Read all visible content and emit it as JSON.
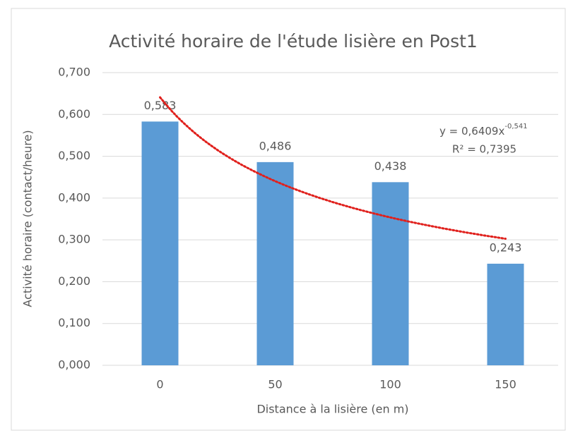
{
  "chart_data": {
    "type": "bar",
    "title": "Activité horaire de l'étude lisière en Post1",
    "x_label": "Distance à la lisière (en m)",
    "y_label": "Activité horaire (contact/heure)",
    "categories": [
      "0",
      "50",
      "100",
      "150"
    ],
    "values": [
      0.583,
      0.486,
      0.438,
      0.243
    ],
    "value_labels": [
      "0,583",
      "0,486",
      "0,438",
      "0,243"
    ],
    "color": "#5b9bd5",
    "ylim": [
      0,
      0.7
    ],
    "yticks": [
      {
        "value": 0,
        "label": "0,000"
      },
      {
        "value": 0.1,
        "label": "0,100"
      },
      {
        "value": 0.2,
        "label": "0,200"
      },
      {
        "value": 0.3,
        "label": "0,300"
      },
      {
        "value": 0.4,
        "label": "0,400"
      },
      {
        "value": 0.5,
        "label": "0,500"
      },
      {
        "value": 0.6,
        "label": "0,600"
      },
      {
        "value": 0.7,
        "label": "0,700"
      }
    ],
    "grid": true,
    "trendline": {
      "type": "power",
      "coefficient": 0.6409,
      "exponent": -0.541,
      "color": "#e0201c",
      "equation_label": "y = 0,6409x",
      "exponent_label": "-0,541",
      "r_squared_label": "R² = 0,7395"
    }
  }
}
